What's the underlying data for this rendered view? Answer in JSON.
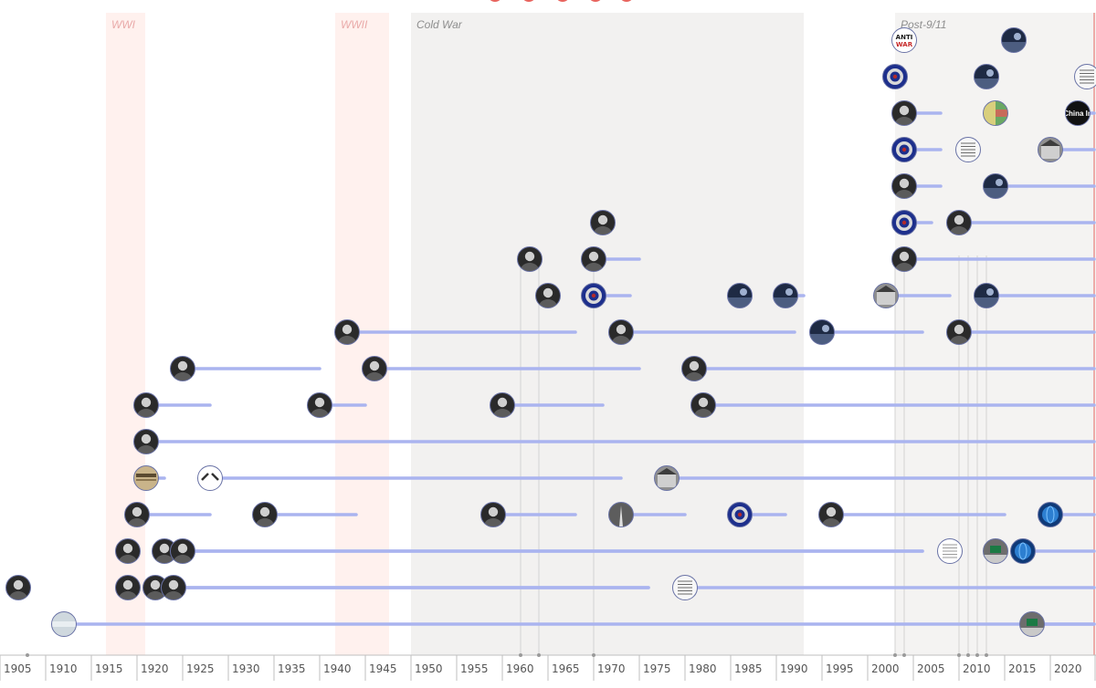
{
  "colors": {
    "background": "#ffffff",
    "war_band": "#fff1ee",
    "war_label": "#e9aaa9",
    "coldwar_band": "#f2f1f0",
    "postwar_band": "#f4f3f2",
    "era_label": "#8e8e8e",
    "lifespan_line": "#aab4ef",
    "drop_line": "#d3d3d3",
    "axis": "#bfbfbf",
    "tick_label": "#555555",
    "now_line": "#e8635d",
    "node_stroke": "#6a73a6"
  },
  "chart_data": {
    "type": "timeline",
    "x_range": [
      1903,
      2023
    ],
    "eras": [
      {
        "name": "WWI",
        "start": 1914.6,
        "end": 1918.9,
        "style": "war"
      },
      {
        "name": "WWII",
        "start": 1939.7,
        "end": 1945.6,
        "style": "war"
      },
      {
        "name": "Cold War",
        "start": 1948.0,
        "end": 1991.0,
        "style": "cold"
      },
      {
        "name": "Post-9/11",
        "start": 2001.0,
        "end": 2023.0,
        "style": "post"
      }
    ],
    "ticks": [
      1905,
      1910,
      1915,
      1920,
      1925,
      1930,
      1935,
      1940,
      1945,
      1950,
      1955,
      1960,
      1965,
      1970,
      1975,
      1980,
      1985,
      1990,
      1995,
      2000,
      2005,
      2010,
      2015,
      2020
    ],
    "marker_years": [
      1906,
      1960,
      1962,
      1968,
      2001,
      2002,
      2008,
      2009,
      2010,
      2011
    ],
    "drop_lines": [
      1960,
      1962,
      1968,
      2001,
      2002,
      2008,
      2009,
      2010,
      2011
    ],
    "now_year": 2022.8,
    "rows": [
      {
        "row": 0,
        "items": [
          {
            "start": 1910,
            "end": 2022.8,
            "node": "scroll"
          },
          {
            "start": 2016,
            "end": 2022.8,
            "node": "protest"
          }
        ]
      },
      {
        "row": 1,
        "items": [
          {
            "start": 1905,
            "end": 1905,
            "node": "portrait"
          },
          {
            "start": 1917,
            "end": 1917,
            "node": "portrait"
          },
          {
            "start": 1920,
            "end": 1974,
            "node": "portrait"
          },
          {
            "start": 1922,
            "end": 1974,
            "node": "portrait"
          },
          {
            "start": 1978,
            "end": 2022.8,
            "node": "document"
          }
        ]
      },
      {
        "row": 2,
        "items": [
          {
            "start": 1917,
            "end": 1917,
            "node": "portrait"
          },
          {
            "start": 1921,
            "end": 2004,
            "node": "portrait"
          },
          {
            "start": 1923,
            "end": 2004,
            "node": "portrait"
          },
          {
            "start": 2007,
            "end": 2007,
            "node": "notice"
          },
          {
            "start": 2012,
            "end": 2012,
            "node": "protest"
          },
          {
            "start": 2015,
            "end": 2022.8,
            "node": "globe"
          }
        ]
      },
      {
        "row": 3,
        "items": [
          {
            "start": 1918,
            "end": 1926,
            "node": "portrait"
          },
          {
            "start": 1932,
            "end": 1942,
            "node": "portrait"
          },
          {
            "start": 1957,
            "end": 1966,
            "node": "portrait"
          },
          {
            "start": 1971,
            "end": 1978,
            "node": "monument"
          },
          {
            "start": 1984,
            "end": 1989,
            "node": "seal"
          },
          {
            "start": 1994,
            "end": 2013,
            "node": "portrait"
          },
          {
            "start": 2018,
            "end": 2022.8,
            "node": "globe"
          }
        ]
      },
      {
        "row": 4,
        "items": [
          {
            "start": 1919,
            "end": 1921,
            "node": "newspaper"
          },
          {
            "start": 1926,
            "end": 1971,
            "node": "emblem"
          },
          {
            "start": 1976,
            "end": 2022.8,
            "node": "building"
          }
        ]
      },
      {
        "row": 5,
        "items": [
          {
            "start": 1919,
            "end": 2022.8,
            "node": "portrait"
          }
        ]
      },
      {
        "row": 6,
        "items": [
          {
            "start": 1919,
            "end": 1926,
            "node": "portrait"
          },
          {
            "start": 1938,
            "end": 1943,
            "node": "portrait"
          },
          {
            "start": 1958,
            "end": 1969,
            "node": "portrait"
          },
          {
            "start": 1980,
            "end": 2022.8,
            "node": "portrait"
          }
        ]
      },
      {
        "row": 7,
        "items": [
          {
            "start": 1923,
            "end": 1938,
            "node": "portrait"
          },
          {
            "start": 1944,
            "end": 1973,
            "node": "portrait"
          },
          {
            "start": 1979,
            "end": 2022.8,
            "node": "portrait"
          }
        ]
      },
      {
        "row": 8,
        "items": [
          {
            "start": 1941,
            "end": 1966,
            "node": "portrait"
          },
          {
            "start": 1971,
            "end": 1990,
            "node": "portrait"
          },
          {
            "start": 1993,
            "end": 2004,
            "node": "photo"
          },
          {
            "start": 2008,
            "end": 2022.8,
            "node": "portrait"
          }
        ]
      },
      {
        "row": 9,
        "items": [
          {
            "start": 1963,
            "end": 1963,
            "node": "portrait"
          },
          {
            "start": 1968,
            "end": 1972,
            "node": "seal"
          },
          {
            "start": 1984,
            "end": 1984,
            "node": "photo"
          },
          {
            "start": 1989,
            "end": 1991,
            "node": "photo"
          },
          {
            "start": 2000,
            "end": 2007,
            "node": "building"
          },
          {
            "start": 2011,
            "end": 2022.8,
            "node": "photo"
          }
        ]
      },
      {
        "row": 10,
        "items": [
          {
            "start": 1961,
            "end": 1961,
            "node": "portrait"
          },
          {
            "start": 1968,
            "end": 1973,
            "node": "portrait"
          },
          {
            "start": 2002,
            "end": 2022.8,
            "node": "portrait"
          }
        ]
      },
      {
        "row": 11,
        "items": [
          {
            "start": 1969,
            "end": 1969,
            "node": "portrait"
          },
          {
            "start": 2002,
            "end": 2005,
            "node": "seal"
          },
          {
            "start": 2008,
            "end": 2022.8,
            "node": "portrait"
          }
        ]
      },
      {
        "row": 12,
        "items": [
          {
            "start": 2002,
            "end": 2006,
            "node": "portrait"
          },
          {
            "start": 2012,
            "end": 2022.8,
            "node": "photo"
          }
        ]
      },
      {
        "row": 13,
        "items": [
          {
            "start": 2002,
            "end": 2006,
            "node": "seal"
          },
          {
            "start": 2009,
            "end": 2009,
            "node": "document"
          },
          {
            "start": 2018,
            "end": 2022.8,
            "node": "building"
          }
        ]
      },
      {
        "row": 14,
        "items": [
          {
            "start": 2002,
            "end": 2006,
            "node": "portrait"
          },
          {
            "start": 2012,
            "end": 2012,
            "node": "map"
          },
          {
            "start": 2021,
            "end": 2022.8,
            "node": "banner",
            "text": "China In"
          }
        ]
      },
      {
        "row": 15,
        "items": [
          {
            "start": 2001,
            "end": 2001,
            "node": "seal"
          },
          {
            "start": 2011,
            "end": 2011,
            "node": "photo"
          },
          {
            "start": 2022,
            "end": 2022.8,
            "node": "document"
          }
        ]
      },
      {
        "row": 16,
        "items": [
          {
            "start": 2002,
            "end": 2002,
            "node": "logo",
            "text": [
              "ANTI",
              "WAR"
            ]
          },
          {
            "start": 2014,
            "end": 2014,
            "node": "photo"
          }
        ]
      }
    ]
  }
}
